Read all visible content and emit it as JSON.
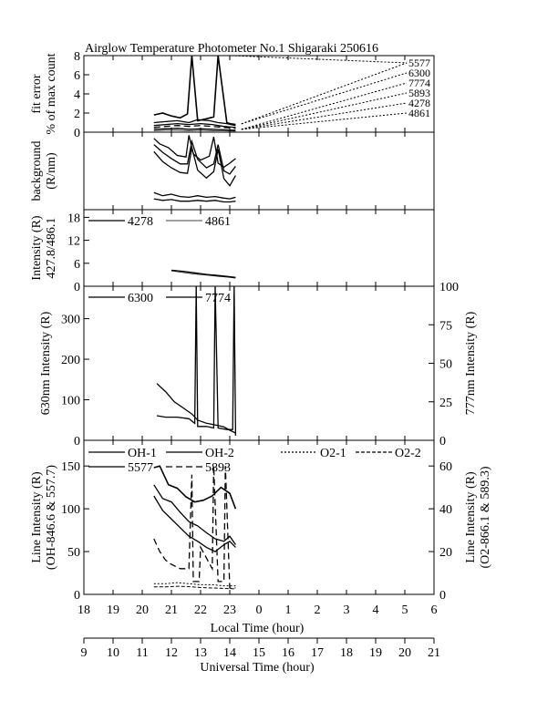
{
  "figure": {
    "title": "Airglow Temperature Photometer No.1  Shigaraki  250616",
    "xlabel_local": "Local Time (hour)",
    "xlabel_universal": "Universal Time (hour)",
    "local_ticks": [
      "18",
      "19",
      "20",
      "21",
      "22",
      "23",
      "0",
      "1",
      "2",
      "3",
      "4",
      "5",
      "6"
    ],
    "universal_ticks": [
      "9",
      "10",
      "11",
      "12",
      "13",
      "14",
      "15",
      "16",
      "17",
      "18",
      "19",
      "20",
      "21"
    ]
  },
  "chart_data": [
    {
      "type": "line",
      "panel": "fit_error",
      "ylabel": [
        "fit error",
        "% of max count"
      ],
      "ylim": [
        0,
        8
      ],
      "yticks": [
        "0",
        "2",
        "4",
        "6",
        "8"
      ],
      "legend": [
        "5577",
        "6300",
        "7774",
        "5893",
        "4278",
        "4861"
      ],
      "series": [
        {
          "name": "5577",
          "x": [
            20.4,
            20.7,
            21.0,
            21.3,
            21.55,
            21.7,
            21.9,
            22.2,
            22.45,
            22.6,
            22.9,
            23.0,
            23.2
          ],
          "y": [
            1.8,
            2.0,
            1.7,
            1.5,
            1.9,
            8.0,
            1.2,
            1.4,
            1.6,
            8.0,
            1.0,
            0.9,
            0.8
          ]
        },
        {
          "name": "6300",
          "x": [
            20.4,
            20.8,
            21.2,
            21.6,
            21.9,
            22.3,
            22.6,
            22.9,
            23.2
          ],
          "y": [
            1.0,
            1.1,
            1.2,
            1.0,
            1.3,
            1.2,
            1.0,
            0.9,
            0.7
          ]
        },
        {
          "name": "7774",
          "x": [
            20.4,
            20.8,
            21.2,
            21.6,
            22.0,
            22.4,
            22.8,
            23.2
          ],
          "y": [
            0.7,
            0.8,
            0.9,
            0.8,
            0.9,
            0.8,
            0.6,
            0.5
          ]
        },
        {
          "name": "5893",
          "x": [
            20.4,
            20.8,
            21.2,
            21.6,
            22.0,
            22.4,
            22.8,
            23.2
          ],
          "y": [
            0.5,
            0.6,
            0.7,
            0.6,
            0.7,
            0.6,
            0.5,
            0.4
          ]
        },
        {
          "name": "4278",
          "x": [
            20.4,
            20.8,
            21.2,
            21.6,
            22.0,
            22.4,
            22.8,
            23.2
          ],
          "y": [
            0.3,
            0.35,
            0.4,
            0.3,
            0.35,
            0.3,
            0.25,
            0.2
          ]
        },
        {
          "name": "4861",
          "x": [
            20.4,
            20.8,
            21.2,
            21.6,
            22.0,
            22.4,
            22.8,
            23.2
          ],
          "y": [
            0.15,
            0.2,
            0.2,
            0.15,
            0.2,
            0.15,
            0.12,
            0.1
          ]
        }
      ]
    },
    {
      "type": "line",
      "panel": "background",
      "ylabel": [
        "background",
        "(R/nm)"
      ],
      "series": [
        {
          "x": [
            20.4,
            20.6,
            20.9,
            21.2,
            21.5,
            21.6,
            21.75,
            22.0,
            22.3,
            22.45,
            22.6,
            22.8,
            23.0,
            23.2
          ],
          "y": [
            9.2,
            8.5,
            8.0,
            7.0,
            6.8,
            9.6,
            7.2,
            6.4,
            6.9,
            9.4,
            6.0,
            5.5,
            6.0,
            6.6
          ]
        },
        {
          "x": [
            20.4,
            20.7,
            21.0,
            21.3,
            21.55,
            21.7,
            21.9,
            22.2,
            22.45,
            22.6,
            22.8,
            23.0,
            23.2
          ],
          "y": [
            8.4,
            7.4,
            6.6,
            5.9,
            5.9,
            8.8,
            6.5,
            5.4,
            5.9,
            8.4,
            5.0,
            4.6,
            5.6
          ]
        },
        {
          "x": [
            20.4,
            20.7,
            21.0,
            21.3,
            21.55,
            21.7,
            21.9,
            22.2,
            22.45,
            22.6,
            22.8,
            23.0,
            23.2
          ],
          "y": [
            7.5,
            6.2,
            5.4,
            4.8,
            4.7,
            8.0,
            5.1,
            4.1,
            4.9,
            7.8,
            4.0,
            3.1,
            4.4
          ]
        },
        {
          "x": [
            20.4,
            20.7,
            21.0,
            21.3,
            21.6,
            21.9,
            22.2,
            22.5,
            22.8,
            23.0,
            23.2
          ],
          "y": [
            2.2,
            1.8,
            2.0,
            1.7,
            1.6,
            1.8,
            1.6,
            1.7,
            1.5,
            1.4,
            1.6
          ]
        },
        {
          "x": [
            20.4,
            20.7,
            21.0,
            21.3,
            21.6,
            21.9,
            22.2,
            22.5,
            22.8,
            23.0,
            23.2
          ],
          "y": [
            1.4,
            1.2,
            1.3,
            1.1,
            1.1,
            1.2,
            1.1,
            1.2,
            1.0,
            1.0,
            1.1
          ]
        }
      ]
    },
    {
      "type": "line",
      "panel": "intensity_427_486",
      "ylabel": [
        "Intensity (R)",
        "427.8/486.1"
      ],
      "ylim": [
        0,
        20
      ],
      "yticks": [
        "0",
        "6",
        "12",
        "18"
      ],
      "legend": [
        "4278",
        "4861"
      ],
      "series": [
        {
          "name": "4278",
          "x": [
            21.0,
            21.4,
            21.8,
            22.2,
            22.6,
            23.0,
            23.2
          ],
          "y": [
            4.2,
            3.9,
            3.5,
            3.1,
            2.8,
            2.5,
            2.3
          ]
        },
        {
          "name": "4861",
          "x": [
            21.0,
            21.4,
            21.8,
            22.2,
            22.6,
            23.0,
            23.2
          ],
          "y": [
            4.0,
            3.6,
            3.2,
            2.9,
            2.6,
            2.3,
            2.1
          ]
        }
      ]
    },
    {
      "type": "line",
      "panel": "intensity_630_777",
      "ylabel": "630nm Intensity (R)",
      "ylabel_right": "777nm Intensity (R)",
      "ylim": [
        0,
        380
      ],
      "yticks": [
        "0",
        "100",
        "200",
        "300"
      ],
      "ylim_right": [
        0,
        100
      ],
      "yticks_right": [
        "0",
        "25",
        "50",
        "75",
        "100"
      ],
      "legend": [
        "6300",
        "7774"
      ],
      "series": [
        {
          "name": "6300",
          "x": [
            20.5,
            20.8,
            21.1,
            21.4,
            21.7,
            21.9,
            22.2,
            22.5,
            22.8,
            23.0,
            23.2
          ],
          "y": [
            140,
            120,
            95,
            80,
            65,
            50,
            42,
            38,
            33,
            25,
            18
          ]
        },
        {
          "name": "7774",
          "x": [
            20.5,
            20.8,
            21.2,
            21.6,
            21.8,
            21.85,
            21.9,
            22.2,
            22.45,
            22.5,
            22.6,
            22.9,
            23.1,
            23.15,
            23.2
          ],
          "y": [
            16,
            15,
            15,
            14,
            11,
            100,
            9,
            9,
            8,
            100,
            8,
            7,
            7,
            100,
            3
          ]
        }
      ]
    },
    {
      "type": "line",
      "panel": "line_intensity",
      "ylabel": [
        "Line Intensity (R)",
        "(OH-846.6 & 557.7)"
      ],
      "ylabel_right": [
        "Line Intensity (R)",
        "(O2-866.1 & 589.3)"
      ],
      "ylim": [
        0,
        180
      ],
      "yticks": [
        "0",
        "50",
        "100",
        "150"
      ],
      "ylim_right": [
        0,
        72
      ],
      "yticks_right": [
        "0",
        "20",
        "40",
        "60"
      ],
      "legend": [
        "OH-1",
        "OH-2",
        "O2-1",
        "O2-2",
        "5577",
        "5893"
      ],
      "series": [
        {
          "name": "OH-1",
          "x": [
            20.4,
            20.7,
            21.0,
            21.3,
            21.6,
            21.9,
            22.2,
            22.5,
            22.8,
            23.0,
            23.2
          ],
          "y": [
            128,
            112,
            108,
            96,
            85,
            80,
            72,
            65,
            62,
            68,
            58
          ]
        },
        {
          "name": "OH-2",
          "x": [
            20.4,
            20.7,
            21.0,
            21.3,
            21.6,
            21.9,
            22.2,
            22.5,
            22.8,
            23.0,
            23.2
          ],
          "y": [
            115,
            98,
            88,
            78,
            68,
            62,
            55,
            50,
            58,
            62,
            55
          ]
        },
        {
          "name": "O2-1",
          "x": [
            20.4,
            20.8,
            21.2,
            21.6,
            22.0,
            22.4,
            22.8,
            23.2
          ],
          "y": [
            5,
            5,
            5.5,
            5,
            4.5,
            4.5,
            4,
            4
          ]
        },
        {
          "name": "O2-2",
          "x": [
            20.4,
            20.8,
            21.2,
            21.6,
            22.0,
            22.4,
            22.8,
            23.2
          ],
          "y": [
            3.5,
            3.5,
            3.8,
            3.6,
            3.2,
            3.0,
            2.8,
            2.6
          ]
        },
        {
          "name": "5577",
          "x": [
            20.4,
            20.6,
            20.9,
            21.2,
            21.5,
            21.8,
            22.1,
            22.4,
            22.7,
            23.0,
            23.2
          ],
          "y": [
            148,
            150,
            128,
            124,
            114,
            108,
            110,
            115,
            125,
            118,
            100
          ]
        },
        {
          "name": "5893",
          "x": [
            20.4,
            20.6,
            20.8,
            21.0,
            21.3,
            21.6,
            21.7,
            21.75,
            21.95,
            22.0,
            22.4,
            22.45,
            22.6,
            22.8,
            22.85,
            23.0,
            23.2
          ],
          "y": [
            26,
            20,
            16,
            14,
            12,
            12,
            56,
            6,
            6,
            22,
            12,
            60,
            6,
            6,
            60,
            3,
            3
          ]
        }
      ]
    }
  ]
}
